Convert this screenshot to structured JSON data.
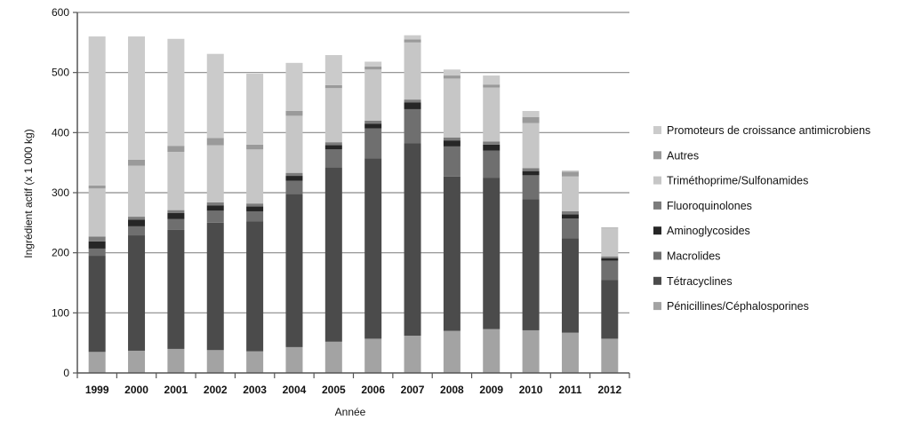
{
  "chart_data": {
    "type": "bar",
    "stacked": true,
    "xlabel": "Année",
    "ylabel": "Ingrédient actif (x 1 000 kg)",
    "ylim": [
      0,
      600
    ],
    "yticks": [
      0,
      100,
      200,
      300,
      400,
      500,
      600
    ],
    "grid": true,
    "legend_position": "right",
    "categories": [
      "1999",
      "2000",
      "2001",
      "2002",
      "2003",
      "2004",
      "2005",
      "2006",
      "2007",
      "2008",
      "2009",
      "2010",
      "2011",
      "2012"
    ],
    "series": [
      {
        "name": "Pénicillines/Céphalosporines",
        "color": "#a3a3a3",
        "values": [
          35,
          37,
          40,
          38,
          36,
          43,
          52,
          57,
          62,
          70,
          73,
          71,
          67,
          57
        ]
      },
      {
        "name": "Tétracyclines",
        "color": "#4b4b4b",
        "values": [
          160,
          192,
          198,
          212,
          216,
          255,
          290,
          300,
          320,
          257,
          252,
          218,
          157,
          98
        ]
      },
      {
        "name": "Macrolides",
        "color": "#6f6f6f",
        "values": [
          12,
          15,
          18,
          20,
          17,
          22,
          30,
          50,
          57,
          50,
          45,
          40,
          33,
          32
        ]
      },
      {
        "name": "Aminoglycosides",
        "color": "#262626",
        "values": [
          12,
          11,
          10,
          9,
          8,
          8,
          7,
          8,
          11,
          10,
          10,
          7,
          7,
          4
        ]
      },
      {
        "name": "Fluoroquinolones",
        "color": "#7c7c7c",
        "values": [
          8,
          5,
          5,
          5,
          5,
          5,
          5,
          5,
          5,
          5,
          5,
          5,
          5,
          3
        ]
      },
      {
        "name": "Triméthoprime/Sulfonamides",
        "color": "#c6c6c6",
        "values": [
          80,
          85,
          97,
          95,
          90,
          95,
          90,
          85,
          95,
          98,
          90,
          75,
          58,
          47
        ]
      },
      {
        "name": "Autres",
        "color": "#9a9a9a",
        "values": [
          5,
          10,
          10,
          12,
          8,
          8,
          5,
          5,
          5,
          5,
          5,
          10,
          8,
          1
        ]
      },
      {
        "name": "Promoteurs de croissance antimicrobiens",
        "color": "#cbcbcb",
        "values": [
          248,
          205,
          178,
          140,
          118,
          80,
          50,
          8,
          7,
          10,
          15,
          10,
          2,
          0
        ]
      }
    ]
  }
}
